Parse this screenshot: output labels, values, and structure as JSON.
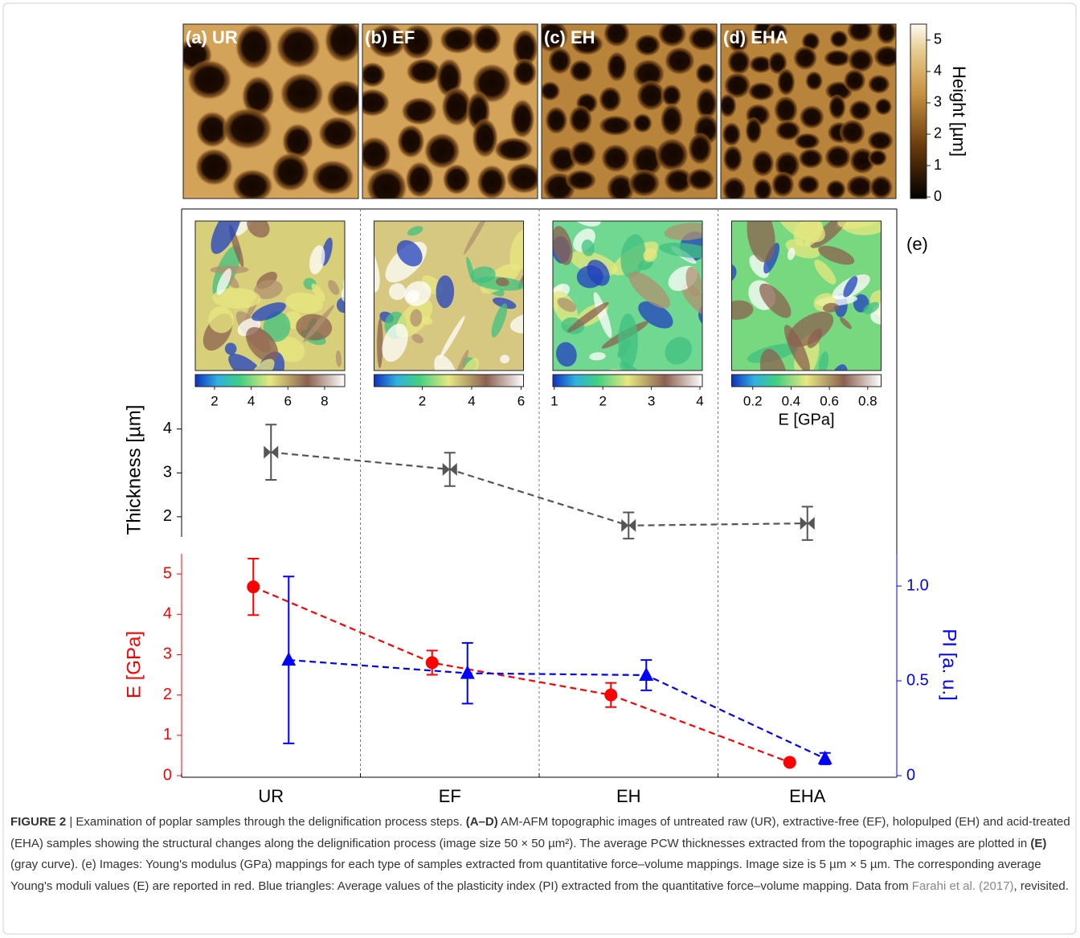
{
  "chart_data": [
    {
      "type": "image",
      "panels": [
        {
          "label": "(a) UR"
        },
        {
          "label": "(b) EF"
        },
        {
          "label": "(c) EH"
        },
        {
          "label": "(d) EHA"
        }
      ],
      "colorbar": {
        "label": "Height [µm]",
        "ylim": [
          -0.05,
          5.51
        ],
        "yticks": [
          0,
          1,
          2,
          3,
          4,
          5
        ]
      }
    },
    {
      "type": "heatmap",
      "annotation": "(e)",
      "colorbar_label": "E [GPa]",
      "maps": [
        {
          "xlim": [
            0.95,
            9.1
          ],
          "xticks": [
            2,
            4,
            6,
            8
          ]
        },
        {
          "xlim": [
            0.05,
            6.1
          ],
          "xticks": [
            2,
            4,
            6
          ]
        },
        {
          "xlim": [
            0.97,
            4.05
          ],
          "xticks": [
            1,
            2,
            3,
            4
          ]
        },
        {
          "xlim": [
            0.09,
            0.87
          ],
          "xticks": [
            0.2,
            0.4,
            0.6,
            0.8
          ]
        }
      ]
    },
    {
      "type": "line",
      "ylabel": "Thickness [µm]",
      "ylim": [
        1.54,
        4.6
      ],
      "yticks": [
        2,
        3,
        4
      ],
      "series": [
        {
          "color": "#555555",
          "marker": "bowtie",
          "values": [
            3.47,
            3.08,
            1.8,
            1.85
          ],
          "errors": [
            0.63,
            0.38,
            0.3,
            0.38
          ]
        }
      ]
    },
    {
      "type": "line",
      "categories": [
        "UR",
        "EF",
        "EH",
        "EHA"
      ],
      "ylabel": "E [GPa]",
      "y2label": "PI [a. u.]",
      "ylim": [
        0,
        5.5
      ],
      "yticks": [
        0,
        1,
        2,
        3,
        4,
        5
      ],
      "y2lim": [
        0,
        1.17
      ],
      "y2ticks": [
        0,
        0.5,
        {
          "value": 1,
          "label": "1.0"
        }
      ],
      "series": [
        {
          "color": "#ff0000",
          "marker": "circle",
          "values": [
            4.68,
            2.8,
            2.0,
            0.33
          ],
          "errors": [
            0.7,
            0.3,
            0.3,
            0.05
          ]
        },
        {
          "color": "#0000ff",
          "marker": "triangle",
          "axis": "y2",
          "values": [
            0.61,
            0.54,
            0.53,
            0.09
          ],
          "errors": [
            0.44,
            0.16,
            0.08,
            0.03
          ]
        }
      ]
    }
  ],
  "caption": {
    "parts": [
      "FIGURE 2",
      " | Examination of poplar samples through the delignification process steps. ",
      "(A–D)",
      " AM-AFM topographic images of untreated raw (UR), extractive-free (EF), holopulped (EH) and acid-treated (EHA) samples showing the structural changes along the delignification process (image size 50 × 50 µm²). The average PCW thicknesses extracted from the topographic images are plotted in ",
      "(E)",
      " (gray curve). (e) Images: Young's modulus (GPa) mappings for each type of samples extracted from quantitative force–volume mappings. Image size is 5 µm × 5 µm. The corresponding average Young's moduli values (E) are reported in red. Blue triangles: Average values of the plasticity index (PI) extracted from the quantitative force–volume mapping. Data from ",
      "Farahi et al. (2017)",
      ", revisited."
    ]
  }
}
